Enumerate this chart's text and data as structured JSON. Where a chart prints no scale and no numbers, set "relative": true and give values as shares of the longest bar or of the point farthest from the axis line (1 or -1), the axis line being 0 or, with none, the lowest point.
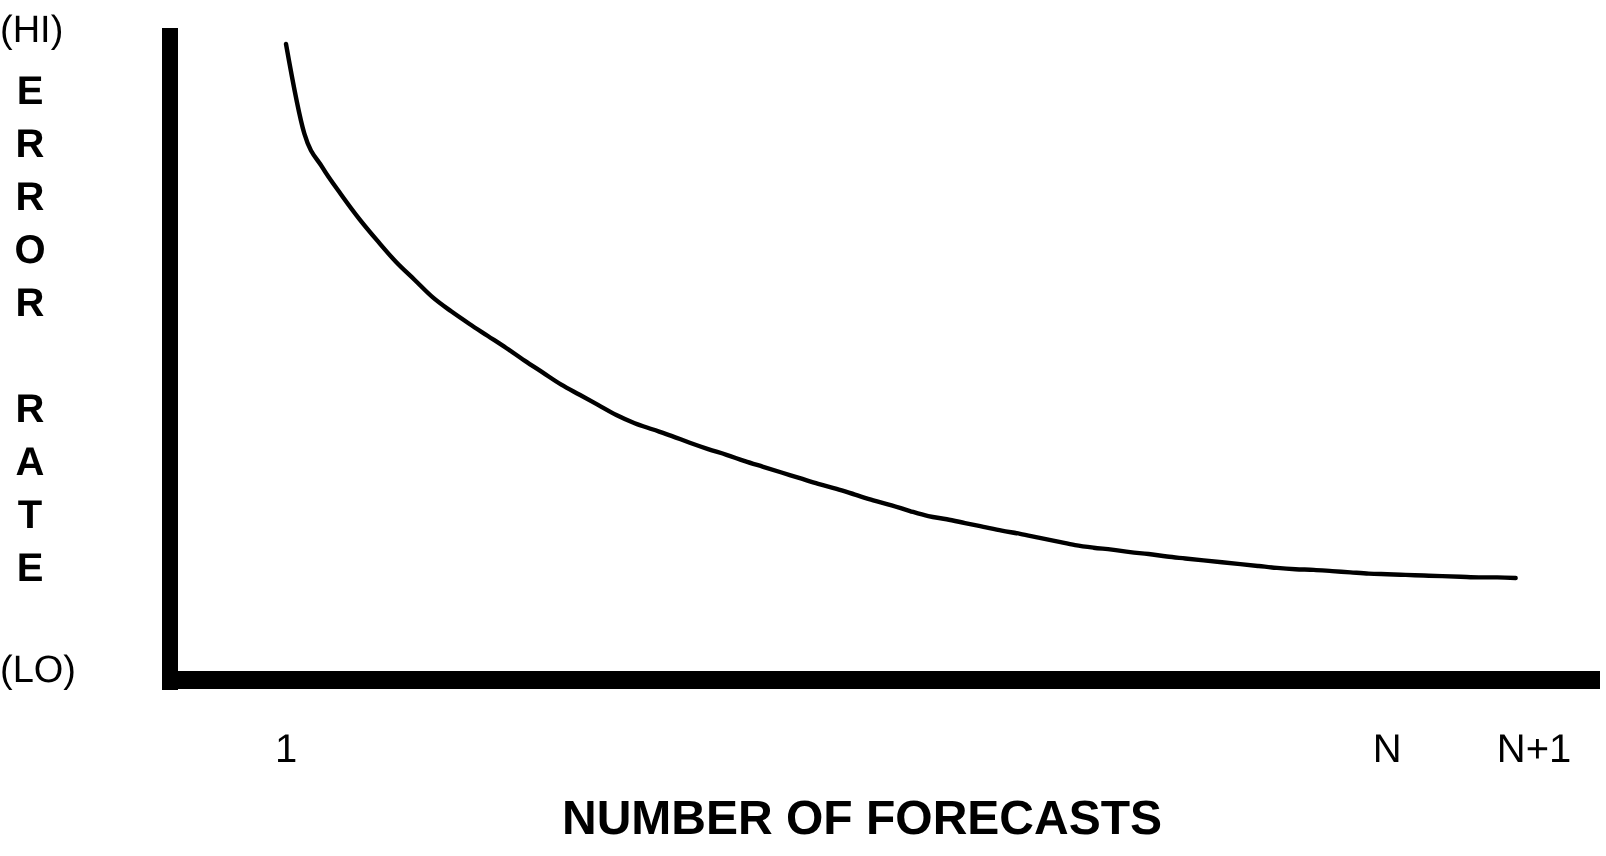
{
  "chart_data": {
    "type": "line",
    "relative": true,
    "xlabel": "NUMBER OF FORECASTS",
    "ylabel": "ERROR RATE",
    "annotations": [
      "(HI)",
      "(LO)"
    ],
    "categories": [
      "1",
      null,
      null,
      null,
      null,
      null,
      null,
      null,
      null,
      null,
      null,
      null,
      null,
      null,
      null,
      null,
      null,
      null,
      null,
      null,
      null,
      null,
      null,
      null,
      null,
      null,
      null,
      null,
      null,
      null,
      null,
      null,
      null,
      null,
      null,
      null,
      null,
      null,
      null,
      null,
      null,
      null,
      null,
      null,
      null,
      null,
      null,
      null,
      null,
      null,
      null,
      null,
      null,
      null,
      null,
      null,
      null,
      null,
      null,
      null,
      "N",
      null,
      null,
      null,
      null,
      null,
      null,
      null,
      "N+1"
    ],
    "series": [
      {
        "color": "#000000",
        "values": [
          1.0,
          0.858,
          0.804,
          0.762,
          0.723,
          0.688,
          0.655,
          0.627,
          0.599,
          0.577,
          0.557,
          0.538,
          0.519,
          0.499,
          0.48,
          0.461,
          0.445,
          0.429,
          0.413,
          0.4,
          0.39,
          0.38,
          0.369,
          0.359,
          0.35,
          0.34,
          0.331,
          0.322,
          0.313,
          0.304,
          0.296,
          0.287,
          0.278,
          0.27,
          0.261,
          0.253,
          0.248,
          0.242,
          0.236,
          0.23,
          0.225,
          0.219,
          0.213,
          0.207,
          0.203,
          0.2,
          0.196,
          0.193,
          0.189,
          0.186,
          0.183,
          0.18,
          0.177,
          0.174,
          0.171,
          0.169,
          0.168,
          0.166,
          0.164,
          0.162,
          0.161,
          0.16,
          0.159,
          0.158,
          0.157,
          0.156,
          0.156,
          0.155,
          null
        ]
      }
    ],
    "marker": "none",
    "line_style": "solid"
  }
}
